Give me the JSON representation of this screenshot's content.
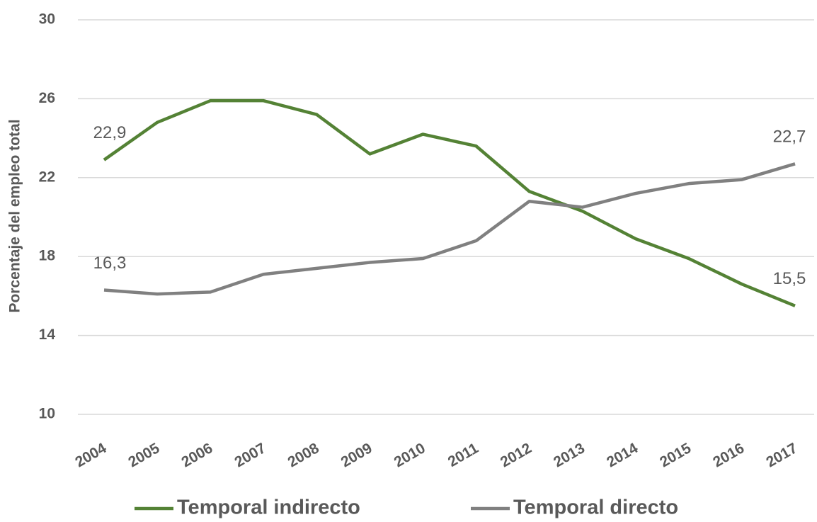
{
  "chart_data": {
    "type": "line",
    "y_axis_label": "Porcentaje del empleo total",
    "categories": [
      "2004",
      "2005",
      "2006",
      "2007",
      "2008",
      "2009",
      "2010",
      "2011",
      "2012",
      "2013",
      "2014",
      "2015",
      "2016",
      "2017"
    ],
    "series": [
      {
        "name": "Temporal indirecto",
        "color": "#548235",
        "values": [
          22.9,
          24.8,
          25.9,
          25.9,
          25.2,
          23.2,
          24.2,
          23.6,
          21.3,
          20.3,
          18.9,
          17.9,
          16.6,
          15.5
        ],
        "value_labels": [
          "22,9",
          null,
          null,
          null,
          null,
          null,
          null,
          null,
          null,
          null,
          null,
          null,
          null,
          "15,5"
        ]
      },
      {
        "name": "Temporal directo",
        "color": "#808080",
        "values": [
          16.3,
          16.1,
          16.2,
          17.1,
          17.4,
          17.7,
          17.9,
          18.8,
          20.8,
          20.5,
          21.2,
          21.7,
          21.9,
          22.7
        ],
        "value_labels": [
          "16,3",
          null,
          null,
          null,
          null,
          null,
          null,
          null,
          null,
          null,
          null,
          null,
          null,
          "22,7"
        ]
      }
    ],
    "ylim": [
      10,
      30
    ],
    "yticks": [
      10,
      14,
      18,
      22,
      26,
      30
    ],
    "grid": true,
    "legend": "bottom"
  }
}
